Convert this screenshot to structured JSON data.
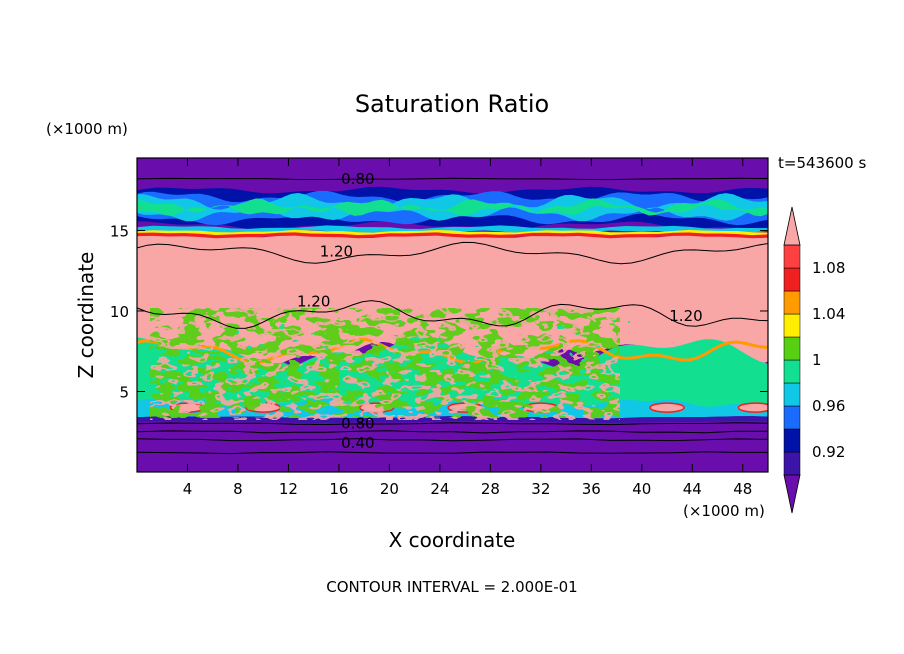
{
  "chart_data": {
    "type": "heatmap",
    "title": "Saturation Ratio",
    "xlabel": "X coordinate",
    "ylabel": "Z coordinate",
    "x_unit": "(×1000 m)",
    "y_unit": "(×1000 m)",
    "time_label": "t=543600 s",
    "footer": "CONTOUR INTERVAL = 2.000E-01",
    "xlim": [
      0,
      50
    ],
    "ylim": [
      0,
      19.5
    ],
    "x_ticks": [
      4,
      8,
      12,
      16,
      20,
      24,
      28,
      32,
      36,
      40,
      44,
      48
    ],
    "y_ticks": [
      5,
      10,
      15
    ],
    "colorbar": {
      "tick_labels": [
        "1.08",
        "1.04",
        "1",
        "0.96",
        "0.92"
      ],
      "levels": [
        0.9,
        0.92,
        0.94,
        0.96,
        0.98,
        1.0,
        1.02,
        1.04,
        1.06,
        1.08,
        1.1
      ],
      "colors": [
        "#6a0dad",
        "#3c14a8",
        "#0012a8",
        "#1a6cff",
        "#10c8e6",
        "#12e090",
        "#58d012",
        "#ffee00",
        "#ff9a00",
        "#f02020",
        "#ff4040",
        "#f8a6a6"
      ]
    },
    "contour_labels": [
      {
        "text": "0.80",
        "x": 17.5,
        "y": 18.2
      },
      {
        "text": "1.20",
        "x": 15.8,
        "y": 13.7
      },
      {
        "text": "1.20",
        "x": 14.0,
        "y": 10.6
      },
      {
        "text": "1.20",
        "x": 43.5,
        "y": 9.7
      },
      {
        "text": "0.80",
        "x": 17.5,
        "y": 3.0
      },
      {
        "text": "0.40",
        "x": 17.5,
        "y": 1.8
      }
    ]
  }
}
